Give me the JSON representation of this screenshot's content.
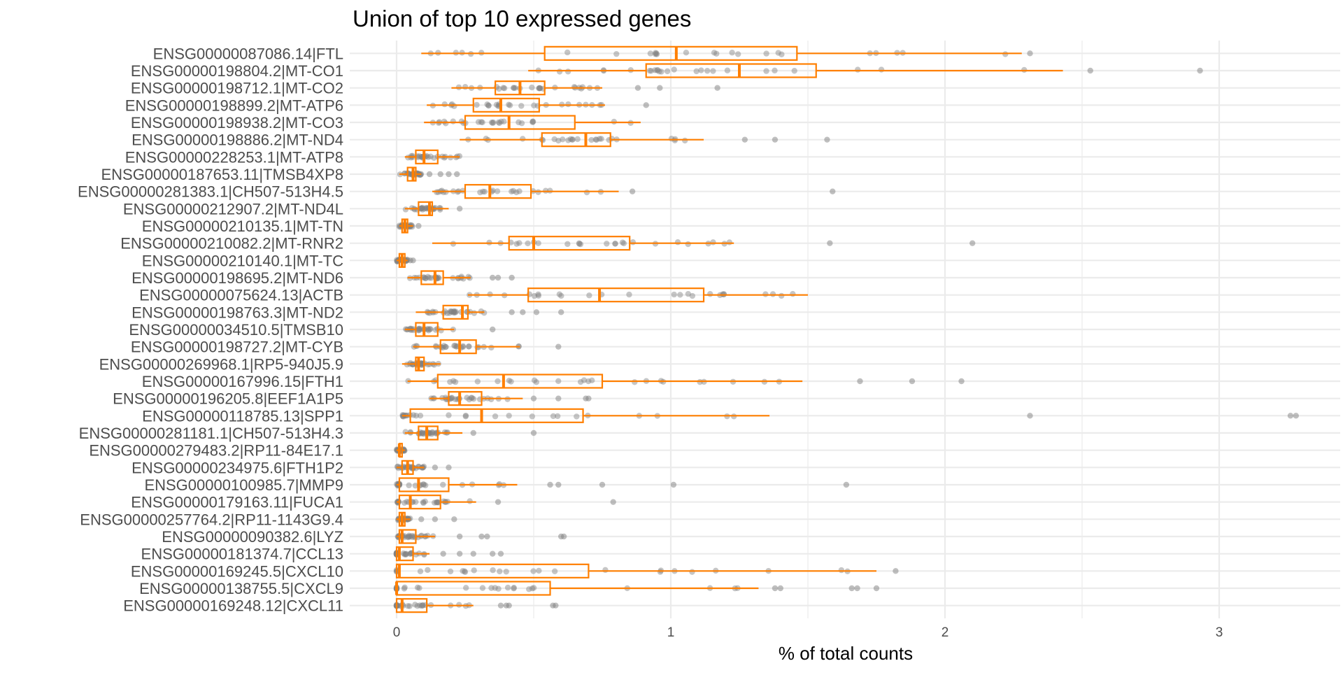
{
  "chart_data": {
    "type": "boxplot",
    "title": "Union of top 10 expressed genes",
    "xlabel": "% of total counts",
    "ylabel": "",
    "xlim": [
      -0.15,
      3.45
    ],
    "x_ticks": [
      0,
      1,
      2,
      3
    ],
    "x_tick_labels": [
      "0",
      "1",
      "2",
      "3"
    ],
    "grid": true,
    "legend": "none",
    "colors": {
      "box": "#ff7f00",
      "points": "#808080",
      "grid": "#ebebeb"
    },
    "categories": [
      "ENSG00000087086.14|FTL",
      "ENSG00000198804.2|MT-CO1",
      "ENSG00000198712.1|MT-CO2",
      "ENSG00000198899.2|MT-ATP6",
      "ENSG00000198938.2|MT-CO3",
      "ENSG00000198886.2|MT-ND4",
      "ENSG00000228253.1|MT-ATP8",
      "ENSG00000187653.11|TMSB4XP8",
      "ENSG00000281383.1|CH507-513H4.5",
      "ENSG00000212907.2|MT-ND4L",
      "ENSG00000210135.1|MT-TN",
      "ENSG00000210082.2|MT-RNR2",
      "ENSG00000210140.1|MT-TC",
      "ENSG00000198695.2|MT-ND6",
      "ENSG00000075624.13|ACTB",
      "ENSG00000198763.3|MT-ND2",
      "ENSG00000034510.5|TMSB10",
      "ENSG00000198727.2|MT-CYB",
      "ENSG00000269968.1|RP5-940J5.9",
      "ENSG00000167996.15|FTH1",
      "ENSG00000196205.8|EEF1A1P5",
      "ENSG00000118785.13|SPP1",
      "ENSG00000281181.1|CH507-513H4.3",
      "ENSG00000279483.2|RP11-84E17.1",
      "ENSG00000234975.6|FTH1P2",
      "ENSG00000100985.7|MMP9",
      "ENSG00000179163.11|FUCA1",
      "ENSG00000257764.2|RP11-1143G9.4",
      "ENSG00000090382.6|LYZ",
      "ENSG00000181374.7|CCL13",
      "ENSG00000169245.5|CXCL10",
      "ENSG00000138755.5|CXCL9",
      "ENSG00000169248.12|CXCL11"
    ],
    "boxes": [
      {
        "wlo": 0.09,
        "q1": 0.54,
        "med": 1.02,
        "q3": 1.46,
        "whi": 2.28,
        "out": [
          2.31
        ]
      },
      {
        "wlo": 0.48,
        "q1": 0.91,
        "med": 1.25,
        "q3": 1.53,
        "whi": 2.43,
        "out": [
          2.53,
          2.93
        ]
      },
      {
        "wlo": 0.2,
        "q1": 0.36,
        "med": 0.45,
        "q3": 0.54,
        "whi": 0.75,
        "out": [
          0.88,
          0.96,
          1.17
        ]
      },
      {
        "wlo": 0.11,
        "q1": 0.28,
        "med": 0.38,
        "q3": 0.52,
        "whi": 0.76,
        "out": [
          0.91
        ]
      },
      {
        "wlo": 0.1,
        "q1": 0.25,
        "med": 0.41,
        "q3": 0.65,
        "whi": 0.89,
        "out": []
      },
      {
        "wlo": 0.23,
        "q1": 0.53,
        "med": 0.69,
        "q3": 0.78,
        "whi": 1.12,
        "out": [
          1.27,
          1.38,
          1.57
        ]
      },
      {
        "wlo": 0.03,
        "q1": 0.07,
        "med": 0.1,
        "q3": 0.15,
        "whi": 0.23,
        "out": []
      },
      {
        "wlo": 0.01,
        "q1": 0.04,
        "med": 0.06,
        "q3": 0.07,
        "whi": 0.09,
        "out": [
          0.12,
          0.16,
          0.19,
          0.22
        ]
      },
      {
        "wlo": 0.13,
        "q1": 0.25,
        "med": 0.34,
        "q3": 0.49,
        "whi": 0.81,
        "out": [
          0.86,
          1.59
        ]
      },
      {
        "wlo": 0.03,
        "q1": 0.08,
        "med": 0.12,
        "q3": 0.13,
        "whi": 0.19,
        "out": [
          0.23
        ]
      },
      {
        "wlo": 0.01,
        "q1": 0.02,
        "med": 0.03,
        "q3": 0.04,
        "whi": 0.06,
        "out": [
          0.08
        ]
      },
      {
        "wlo": 0.13,
        "q1": 0.41,
        "med": 0.5,
        "q3": 0.85,
        "whi": 1.23,
        "out": [
          1.58,
          2.1
        ]
      },
      {
        "wlo": 0.0,
        "q1": 0.01,
        "med": 0.02,
        "q3": 0.03,
        "whi": 0.04,
        "out": [
          0.05,
          0.06
        ]
      },
      {
        "wlo": 0.04,
        "q1": 0.09,
        "med": 0.14,
        "q3": 0.17,
        "whi": 0.27,
        "out": [
          0.35,
          0.37,
          0.42
        ]
      },
      {
        "wlo": 0.26,
        "q1": 0.48,
        "med": 0.74,
        "q3": 1.12,
        "whi": 1.5,
        "out": []
      },
      {
        "wlo": 0.07,
        "q1": 0.17,
        "med": 0.24,
        "q3": 0.26,
        "whi": 0.32,
        "out": [
          0.42,
          0.46,
          0.51,
          0.6
        ]
      },
      {
        "wlo": 0.03,
        "q1": 0.07,
        "med": 0.1,
        "q3": 0.15,
        "whi": 0.21,
        "out": [
          0.35
        ]
      },
      {
        "wlo": 0.06,
        "q1": 0.16,
        "med": 0.23,
        "q3": 0.29,
        "whi": 0.45,
        "out": [
          0.59
        ]
      },
      {
        "wlo": 0.02,
        "q1": 0.07,
        "med": 0.08,
        "q3": 0.1,
        "whi": 0.16,
        "out": []
      },
      {
        "wlo": 0.04,
        "q1": 0.15,
        "med": 0.39,
        "q3": 0.75,
        "whi": 1.48,
        "out": [
          1.69,
          1.88,
          2.06
        ]
      },
      {
        "wlo": 0.12,
        "q1": 0.19,
        "med": 0.23,
        "q3": 0.31,
        "whi": 0.46,
        "out": [
          0.5,
          0.59,
          0.69,
          0.7
        ]
      },
      {
        "wlo": 0.02,
        "q1": 0.05,
        "med": 0.31,
        "q3": 0.68,
        "whi": 1.36,
        "out": [
          2.31,
          3.26,
          3.28
        ]
      },
      {
        "wlo": 0.03,
        "q1": 0.08,
        "med": 0.11,
        "q3": 0.15,
        "whi": 0.24,
        "out": [
          0.28,
          0.5
        ]
      },
      {
        "wlo": 0.0,
        "q1": 0.01,
        "med": 0.01,
        "q3": 0.02,
        "whi": 0.03,
        "out": []
      },
      {
        "wlo": 0.0,
        "q1": 0.02,
        "med": 0.04,
        "q3": 0.06,
        "whi": 0.1,
        "out": [
          0.14,
          0.19
        ]
      },
      {
        "wlo": 0.0,
        "q1": 0.01,
        "med": 0.08,
        "q3": 0.19,
        "whi": 0.44,
        "out": [
          0.56,
          0.59,
          0.75,
          1.01,
          1.64
        ]
      },
      {
        "wlo": 0.0,
        "q1": 0.01,
        "med": 0.05,
        "q3": 0.16,
        "whi": 0.29,
        "out": [
          0.37,
          0.79
        ]
      },
      {
        "wlo": 0.0,
        "q1": 0.01,
        "med": 0.02,
        "q3": 0.03,
        "whi": 0.05,
        "out": [
          0.09,
          0.14,
          0.21
        ]
      },
      {
        "wlo": 0.0,
        "q1": 0.01,
        "med": 0.02,
        "q3": 0.07,
        "whi": 0.14,
        "out": [
          0.23,
          0.31,
          0.33,
          0.6,
          0.61
        ]
      },
      {
        "wlo": 0.0,
        "q1": 0.0,
        "med": 0.01,
        "q3": 0.06,
        "whi": 0.12,
        "out": [
          0.17,
          0.23,
          0.28,
          0.35,
          0.38
        ]
      },
      {
        "wlo": 0.0,
        "q1": 0.0,
        "med": 0.01,
        "q3": 0.7,
        "whi": 1.75,
        "out": [
          1.82
        ]
      },
      {
        "wlo": 0.0,
        "q1": 0.0,
        "med": 0.0,
        "q3": 0.56,
        "whi": 1.32,
        "out": [
          1.38,
          1.4,
          1.66,
          1.68,
          1.75
        ]
      },
      {
        "wlo": 0.0,
        "q1": 0.0,
        "med": 0.02,
        "q3": 0.11,
        "whi": 0.28,
        "out": [
          0.38,
          0.4,
          0.41,
          0.57,
          0.58
        ]
      }
    ]
  }
}
